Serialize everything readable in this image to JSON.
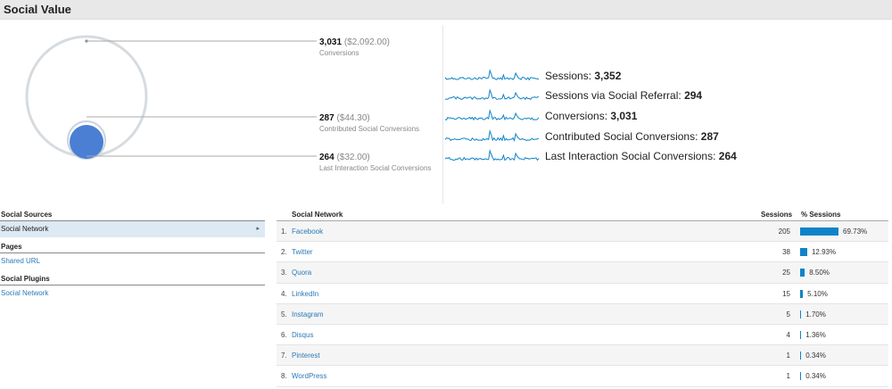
{
  "header": {
    "title": "Social Value"
  },
  "metrics": [
    {
      "value": "3,031",
      "money": "($2,092.00)",
      "label": "Conversions"
    },
    {
      "value": "287",
      "money": "($44.30)",
      "label": "Contributed Social Conversions"
    },
    {
      "value": "264",
      "money": "($32.00)",
      "label": "Last Interaction Social Conversions"
    }
  ],
  "sparklines": [
    {
      "label": "Sessions:",
      "value": "3,352"
    },
    {
      "label": "Sessions via Social Referral:",
      "value": "294"
    },
    {
      "label": "Conversions:",
      "value": "3,031"
    },
    {
      "label": "Contributed Social Conversions:",
      "value": "287"
    },
    {
      "label": "Last Interaction Social Conversions:",
      "value": "264"
    }
  ],
  "left_nav": {
    "social_sources": {
      "heading": "Social Sources",
      "items": [
        {
          "label": "Social Network",
          "selected": true
        }
      ]
    },
    "pages": {
      "heading": "Pages",
      "items": [
        {
          "label": "Shared URL"
        }
      ]
    },
    "social_plugins": {
      "heading": "Social Plugins",
      "items": [
        {
          "label": "Social Network"
        }
      ]
    }
  },
  "table": {
    "headers": {
      "network": "Social Network",
      "sessions": "Sessions",
      "pct": "% Sessions"
    },
    "rows": [
      {
        "idx": "1.",
        "name": "Facebook",
        "sessions": "205",
        "pct_label": "69.73%",
        "pct": 69.73
      },
      {
        "idx": "2.",
        "name": "Twitter",
        "sessions": "38",
        "pct_label": "12.93%",
        "pct": 12.93
      },
      {
        "idx": "3.",
        "name": "Quora",
        "sessions": "25",
        "pct_label": "8.50%",
        "pct": 8.5
      },
      {
        "idx": "4.",
        "name": "LinkedIn",
        "sessions": "15",
        "pct_label": "5.10%",
        "pct": 5.1
      },
      {
        "idx": "5.",
        "name": "Instagram",
        "sessions": "5",
        "pct_label": "1.70%",
        "pct": 1.7
      },
      {
        "idx": "6.",
        "name": "Disqus",
        "sessions": "4",
        "pct_label": "1.36%",
        "pct": 1.36
      },
      {
        "idx": "7.",
        "name": "Pinterest",
        "sessions": "1",
        "pct_label": "0.34%",
        "pct": 0.34
      },
      {
        "idx": "8.",
        "name": "WordPress",
        "sessions": "1",
        "pct_label": "0.34%",
        "pct": 0.34
      }
    ]
  },
  "colors": {
    "accent": "#0f83c8",
    "circle_fill": "#4a7fd4",
    "circle_outline": "#d6dbe0",
    "link": "#2a7ab8"
  }
}
